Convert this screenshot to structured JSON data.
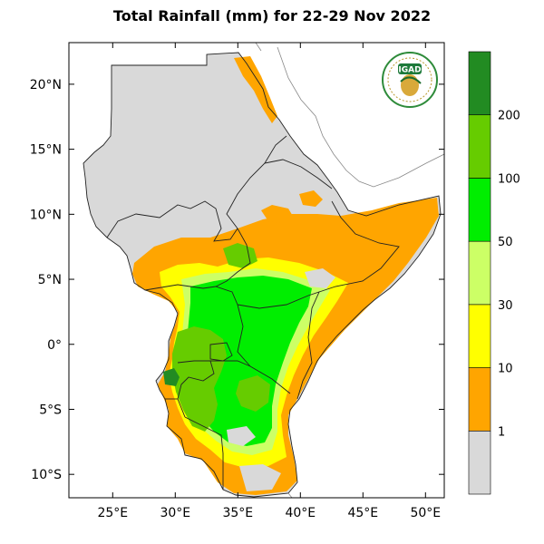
{
  "title": "Total Rainfall (mm) for 22-29 Nov 2022",
  "logo": {
    "text": "IGAD"
  },
  "axes": {
    "lon_ticks": [
      {
        "value": 25,
        "label": "25°E"
      },
      {
        "value": 30,
        "label": "30°E"
      },
      {
        "value": 35,
        "label": "35°E"
      },
      {
        "value": 40,
        "label": "40°E"
      },
      {
        "value": 45,
        "label": "45°E"
      },
      {
        "value": 50,
        "label": "50°E"
      }
    ],
    "lat_ticks": [
      {
        "value": 20,
        "label": "20°N"
      },
      {
        "value": 15,
        "label": "15°N"
      },
      {
        "value": 10,
        "label": "10°N"
      },
      {
        "value": 5,
        "label": "5°N"
      },
      {
        "value": 0,
        "label": "0°"
      },
      {
        "value": -5,
        "label": "5°S"
      },
      {
        "value": -10,
        "label": "10°S"
      }
    ],
    "lon_range": [
      21.5,
      51.5
    ],
    "lat_range": [
      -11.8,
      23.2
    ]
  },
  "colorbar": {
    "classes": [
      {
        "color": "#d9d9d9"
      },
      {
        "color": "#ffa500"
      },
      {
        "color": "#ffff00"
      },
      {
        "color": "#ccff66"
      },
      {
        "color": "#00ee00"
      },
      {
        "color": "#66cc00"
      },
      {
        "color": "#228b22"
      }
    ],
    "labels": [
      "1",
      "10",
      "30",
      "50",
      "100",
      "200"
    ]
  }
}
